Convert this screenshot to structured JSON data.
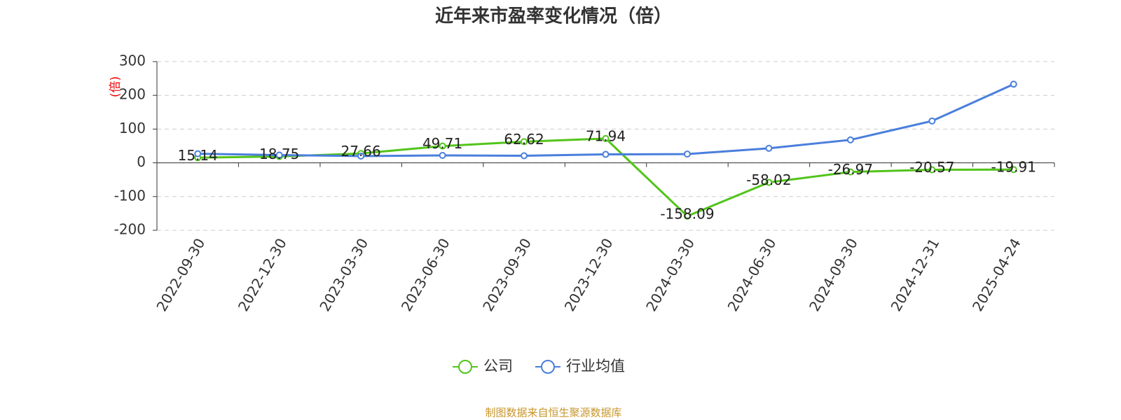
{
  "chart_data": {
    "type": "line",
    "title": "近年来市盈率变化情况（倍）",
    "ylabel": "(倍)",
    "categories": [
      "2022-09-30",
      "2022-12-30",
      "2023-03-30",
      "2023-06-30",
      "2023-09-30",
      "2023-12-30",
      "2024-03-30",
      "2024-06-30",
      "2024-09-30",
      "2024-12-31",
      "2025-04-24"
    ],
    "series": [
      {
        "name": "公司",
        "color": "#52c41a",
        "values": [
          15.14,
          18.75,
          27.66,
          49.71,
          62.62,
          71.94,
          -158.09,
          -58.02,
          -26.97,
          -20.57,
          -19.91
        ]
      },
      {
        "name": "行业均值",
        "color": "#4a7fdc",
        "values": [
          27,
          23,
          20,
          22,
          21,
          25,
          26,
          43,
          68,
          124,
          233
        ]
      }
    ],
    "ylim": [
      -200,
      300
    ],
    "yticks": [
      -200,
      -100,
      0,
      100,
      200,
      300
    ],
    "grid": true,
    "source": "制图数据来自恒生聚源数据库"
  }
}
